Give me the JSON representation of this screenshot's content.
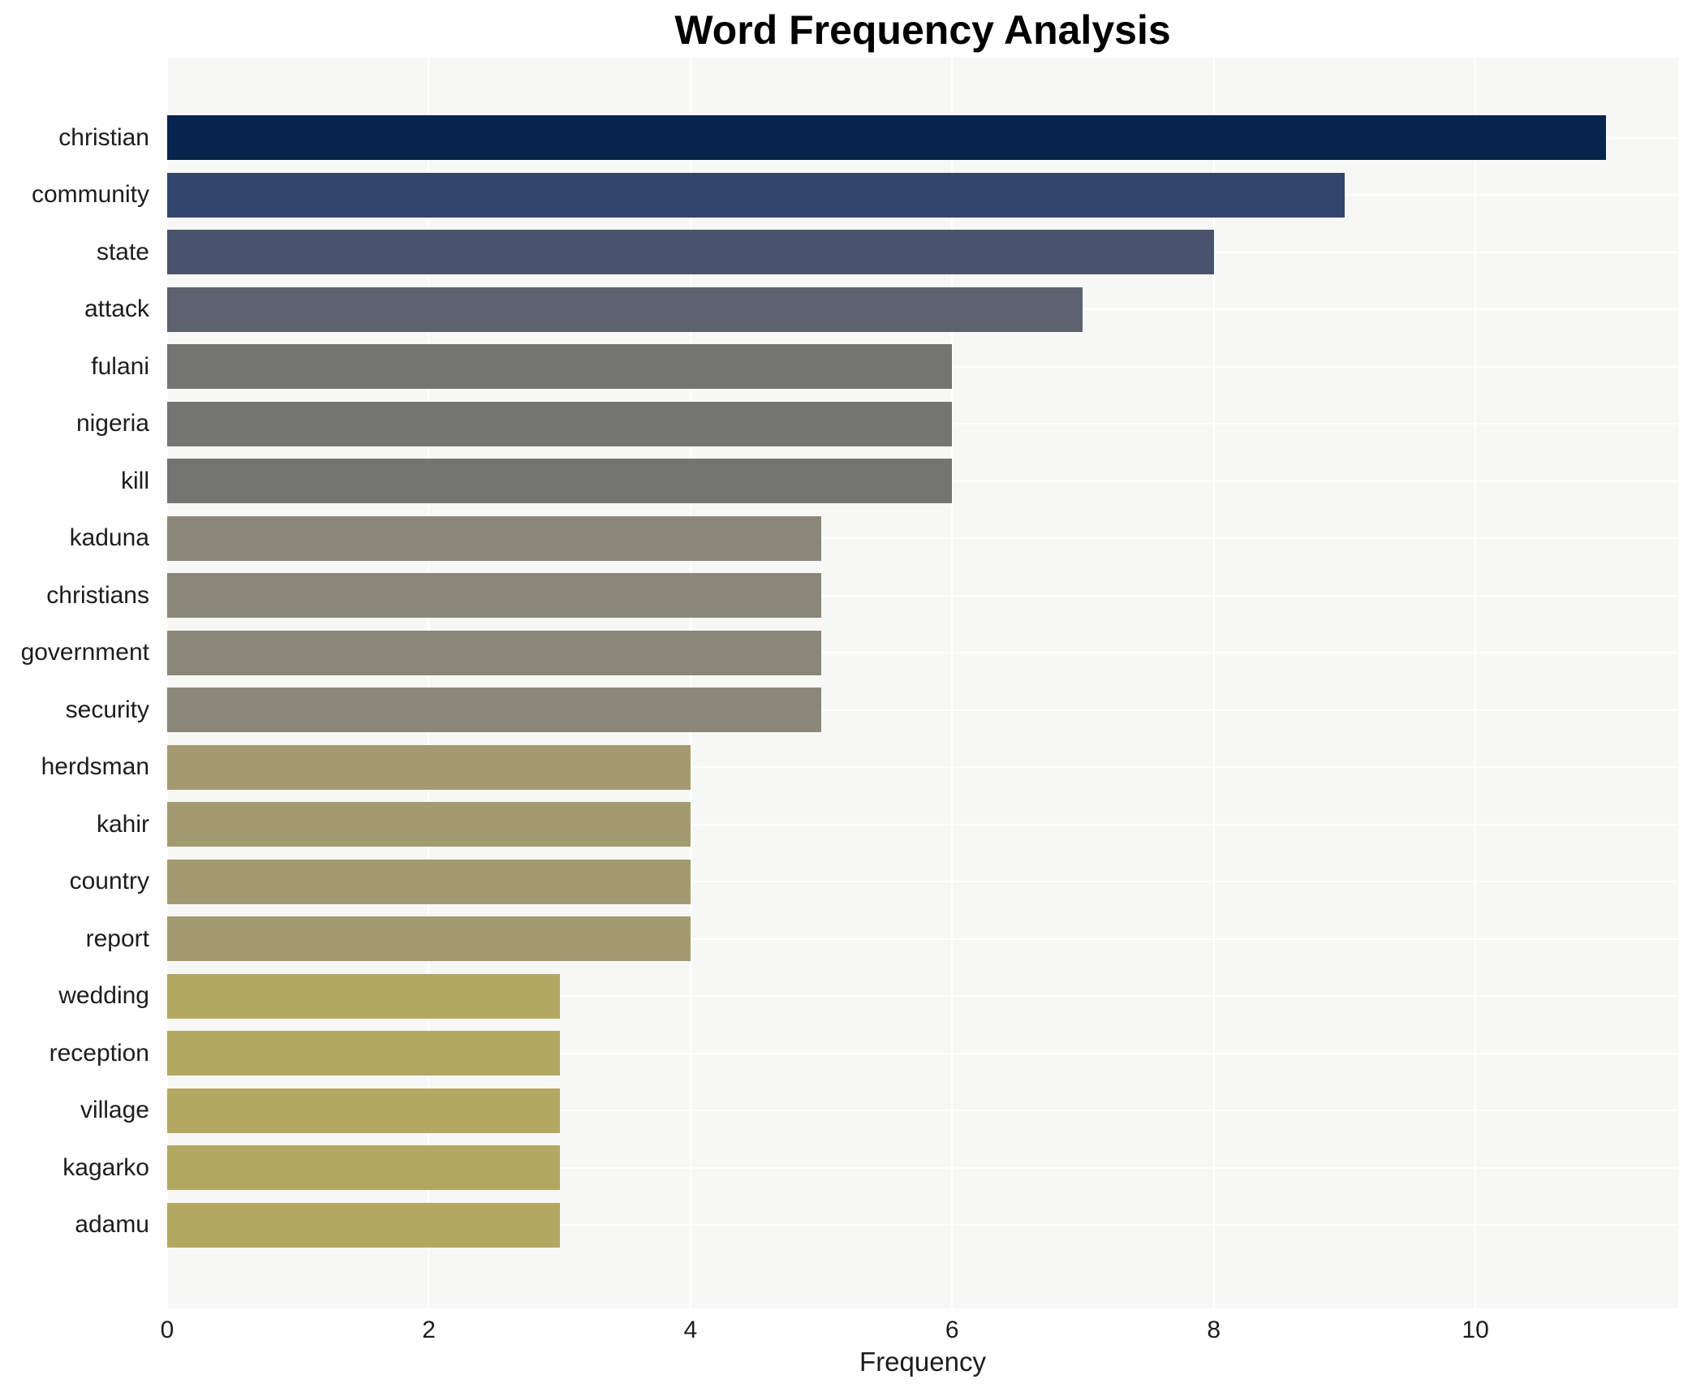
{
  "figure": {
    "background": "#ffffff",
    "plot_background": "#f7f7f5",
    "grid_color": "#ffffff",
    "text_color": "#1d1d1d",
    "title_color": "#000000"
  },
  "chart_data": {
    "type": "bar",
    "orientation": "horizontal",
    "title": "Word Frequency Analysis",
    "xlabel": "Frequency",
    "ylabel": "",
    "xlim": [
      0,
      11.55
    ],
    "xticks": [
      0,
      2,
      4,
      6,
      8,
      10
    ],
    "grid": true,
    "legend": false,
    "categories": [
      "christian",
      "community",
      "state",
      "attack",
      "fulani",
      "nigeria",
      "kill",
      "kaduna",
      "christians",
      "government",
      "security",
      "herdsman",
      "kahir",
      "country",
      "report",
      "wedding",
      "reception",
      "village",
      "kagarko",
      "adamu"
    ],
    "values": [
      11,
      9,
      8,
      7,
      6,
      6,
      6,
      5,
      5,
      5,
      5,
      4,
      4,
      4,
      4,
      3,
      3,
      3,
      3,
      3
    ],
    "bar_colors": [
      "#07244c",
      "#32456b",
      "#4a536d",
      "#5e616f",
      "#747473",
      "#747473",
      "#747473",
      "#8b8778",
      "#8b8778",
      "#8b8778",
      "#8b8778",
      "#a49a6f",
      "#a49a6f",
      "#a49a6f",
      "#a49a6f",
      "#b3a862",
      "#b3a862",
      "#b3a862",
      "#b3a862",
      "#b3a862"
    ]
  }
}
